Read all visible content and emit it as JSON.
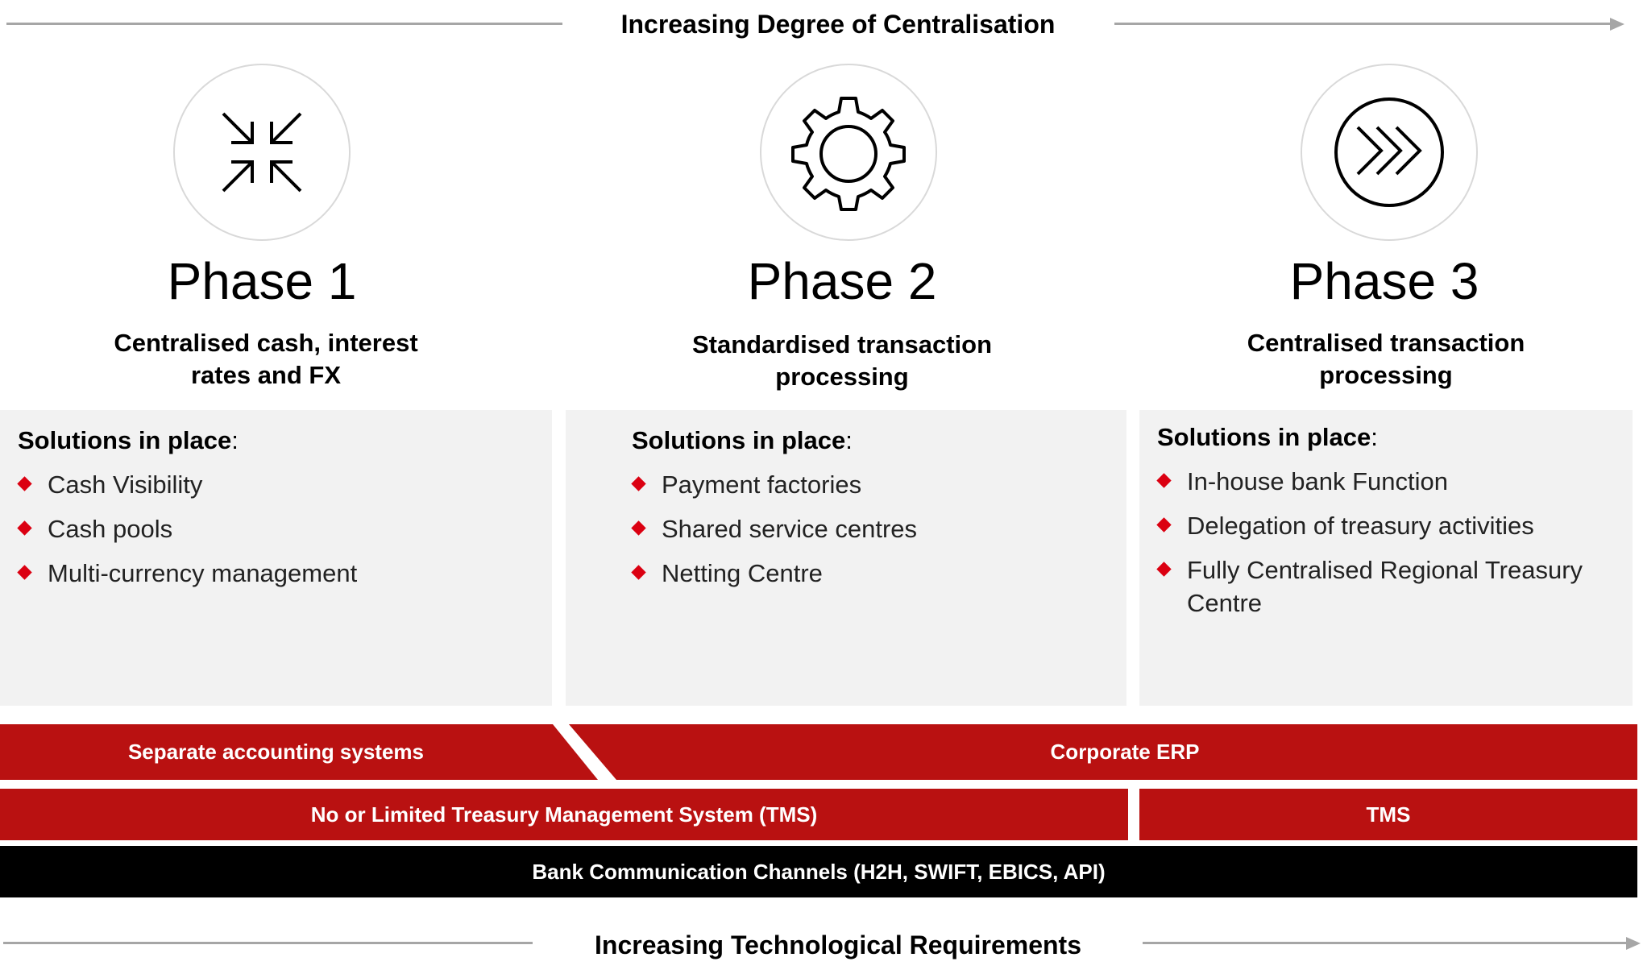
{
  "top_axis": {
    "label": "Increasing Degree of Centralisation"
  },
  "bottom_axis": {
    "label": "Increasing Technological Requirements"
  },
  "phases": [
    {
      "title": "Phase 1",
      "icon": "arrows-converge-icon",
      "subtitle_lines": [
        "Centralised cash, interest",
        "rates and FX"
      ],
      "solutions_heading": "Solutions in place",
      "solutions_colon": ":",
      "items": [
        "Cash Visibility",
        "Cash pools",
        "Multi-currency management"
      ]
    },
    {
      "title": "Phase 2",
      "icon": "gear-icon",
      "subtitle_lines": [
        "Standardised transaction",
        "processing"
      ],
      "solutions_heading": "Solutions in place",
      "solutions_colon": ":",
      "items": [
        "Payment factories",
        "Shared service centres",
        "Netting Centre"
      ]
    },
    {
      "title": "Phase 3",
      "icon": "fast-forward-circle-icon",
      "subtitle_lines": [
        "Centralised transaction",
        "processing"
      ],
      "solutions_heading": "Solutions in place",
      "solutions_colon": ":",
      "items": [
        "In-house bank Function",
        "Delegation of treasury activities",
        "Fully Centralised Regional Treasury Centre"
      ]
    }
  ],
  "bars": {
    "separate_accounting": "Separate accounting  systems",
    "corporate_erp": "Corporate  ERP",
    "limited_tms": "No or Limited Treasury  Management System (TMS)",
    "tms": "TMS",
    "bank_channels": "Bank Communication  Channels (H2H, SWIFT, EBICS, API)"
  },
  "colors": {
    "red": "#b91111",
    "black": "#000000",
    "bullet": "#db0011",
    "panel": "#f2f2f2",
    "line": "#a6a6a6"
  }
}
